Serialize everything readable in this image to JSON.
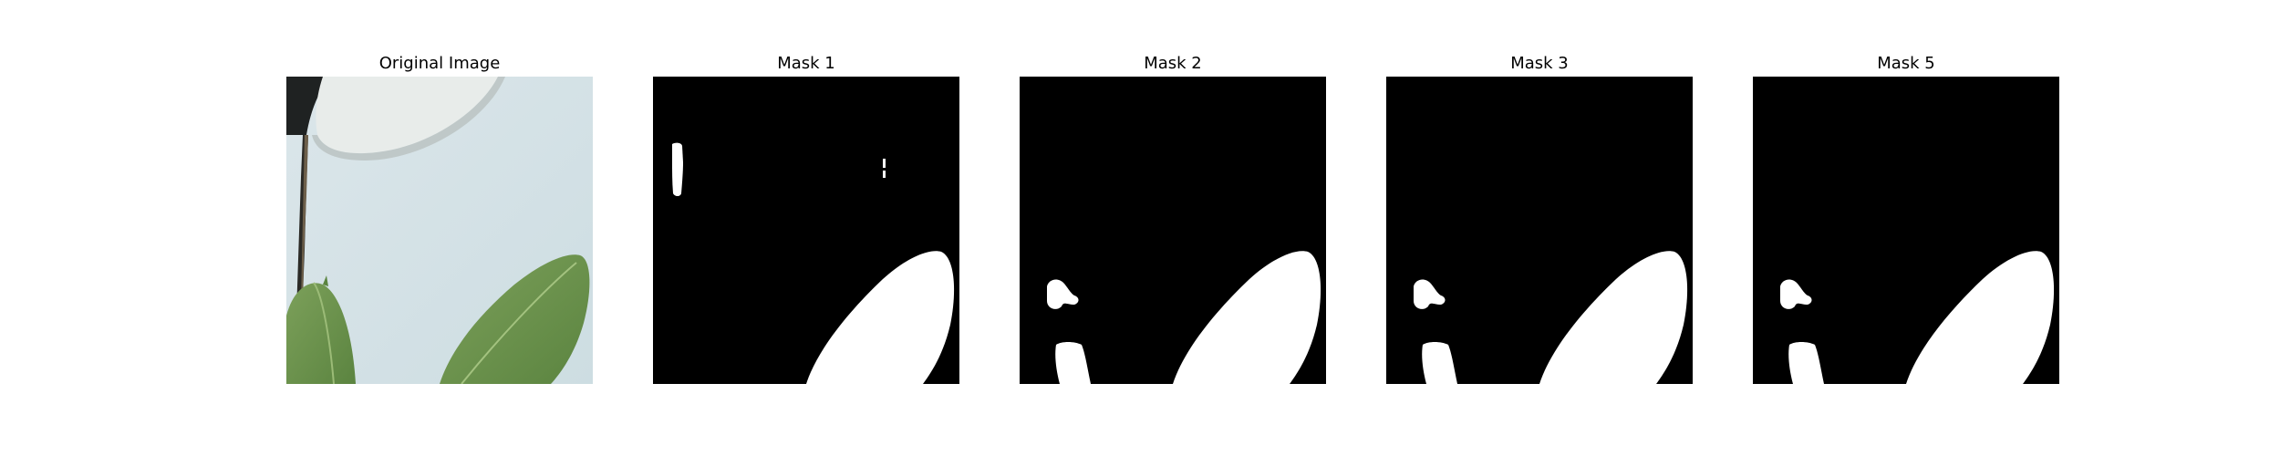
{
  "figure": {
    "panels": [
      {
        "title": "Original Image",
        "kind": "photo"
      },
      {
        "title": "Mask 1",
        "kind": "mask"
      },
      {
        "title": "Mask 2",
        "kind": "mask"
      },
      {
        "title": "Mask 3",
        "kind": "mask"
      },
      {
        "title": "Mask 5",
        "kind": "mask"
      }
    ]
  },
  "colors": {
    "background": "#ffffff",
    "mask_background": "#000000",
    "mask_foreground": "#ffffff",
    "wall": "#d9e6ea",
    "leaf": "#6f9650",
    "crack": "#2b2a26",
    "pipe": "#e9eceb"
  }
}
